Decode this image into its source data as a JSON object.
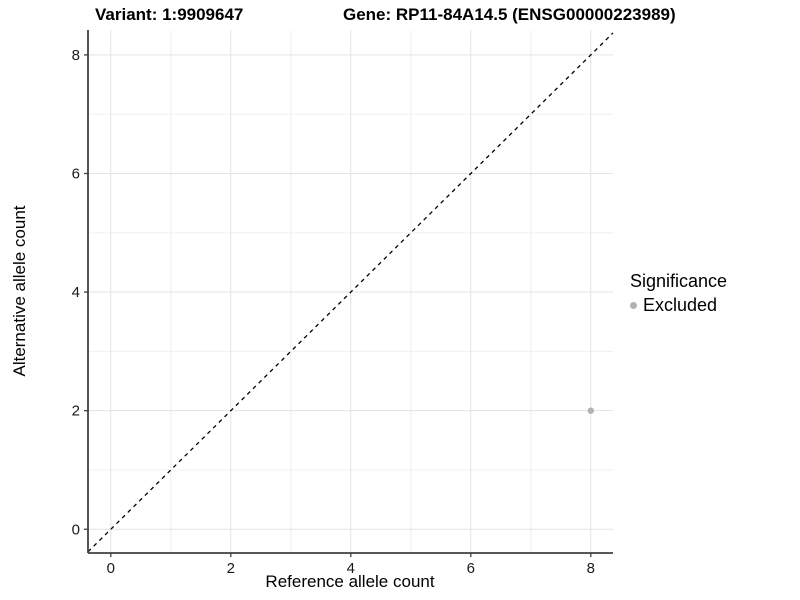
{
  "title": {
    "variant": "Variant: 1:9909647",
    "gene": "Gene: RP11-84A14.5 (ENSG00000223989)"
  },
  "chart_data": {
    "type": "scatter",
    "xlabel": "Reference allele count",
    "ylabel": "Alternative allele count",
    "xlim": [
      -0.38,
      8.37
    ],
    "ylim": [
      -0.4,
      8.42
    ],
    "xticks": [
      0,
      2,
      4,
      6,
      8
    ],
    "yticks": [
      0,
      2,
      4,
      6,
      8
    ],
    "x_minor_ticks": [
      1,
      3,
      5,
      7
    ],
    "y_minor_ticks": [
      1,
      3,
      5,
      7
    ],
    "grid": true,
    "points": [
      {
        "x": 8,
        "y": 2,
        "significance": "Excluded"
      }
    ],
    "point_color": "#b3b3b3",
    "point_radius": 3.2,
    "identity_line": {
      "slope": 1,
      "intercept": 0,
      "style": "dashed",
      "color": "#000000"
    },
    "legend": {
      "title": "Significance",
      "position": "right",
      "items": [
        {
          "label": "Excluded",
          "color": "#b3b3b3"
        }
      ]
    },
    "colors": {
      "grid_major": "#e3e3e3",
      "grid_minor": "#f0f0f0",
      "axis_line": "#404040",
      "tick_text": "#1a1a1a"
    }
  }
}
